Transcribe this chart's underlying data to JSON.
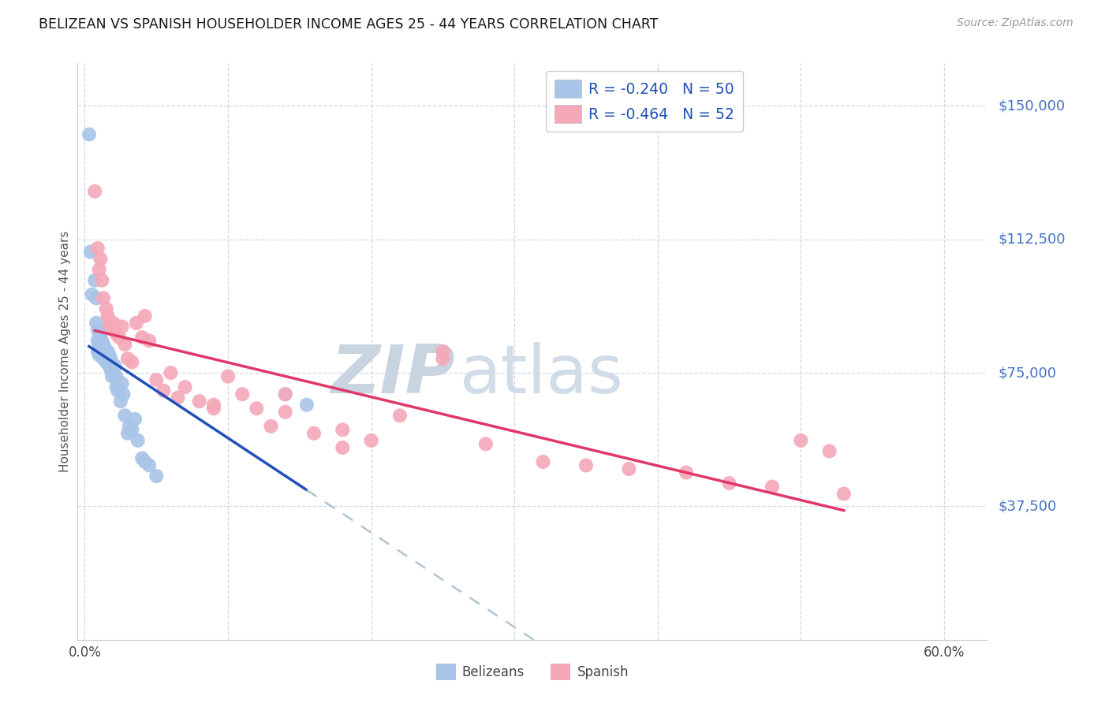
{
  "title": "BELIZEAN VS SPANISH HOUSEHOLDER INCOME AGES 25 - 44 YEARS CORRELATION CHART",
  "source": "Source: ZipAtlas.com",
  "ylabel": "Householder Income Ages 25 - 44 years",
  "belizean_R": -0.24,
  "belizean_N": 50,
  "spanish_R": -0.464,
  "spanish_N": 52,
  "belizean_color": "#a8c4e8",
  "spanish_color": "#f4a8b8",
  "belizean_line_color": "#2050b8",
  "spanish_line_color": "#e03868",
  "dashed_line_color": "#b0c4d4",
  "watermark_color": "#d0dce8",
  "background_color": "#ffffff",
  "grid_color": "#d0d8e4",
  "right_label_color": "#4472c4",
  "legend_text_color": "#2050b8",
  "y_ticks": [
    37500,
    75000,
    112500,
    150000
  ],
  "y_tick_labels": [
    "$37,500",
    "$75,000",
    "$112,500",
    "$150,000"
  ],
  "ylim": [
    0,
    162000
  ],
  "xlim": [
    -0.005,
    0.63
  ],
  "belizean_x": [
    0.003,
    0.004,
    0.005,
    0.007,
    0.008,
    0.008,
    0.009,
    0.009,
    0.009,
    0.01,
    0.01,
    0.01,
    0.011,
    0.011,
    0.012,
    0.012,
    0.013,
    0.013,
    0.013,
    0.014,
    0.014,
    0.015,
    0.015,
    0.016,
    0.016,
    0.017,
    0.017,
    0.018,
    0.018,
    0.019,
    0.02,
    0.021,
    0.022,
    0.022,
    0.023,
    0.025,
    0.026,
    0.027,
    0.028,
    0.03,
    0.031,
    0.033,
    0.035,
    0.037,
    0.04,
    0.042,
    0.045,
    0.05,
    0.14,
    0.155
  ],
  "belizean_y": [
    142000,
    109000,
    97000,
    101000,
    96000,
    89000,
    87000,
    84000,
    81000,
    86000,
    83000,
    80000,
    85000,
    81000,
    84000,
    82000,
    83000,
    81000,
    79000,
    82000,
    80000,
    81000,
    78000,
    81000,
    78000,
    80000,
    77000,
    79000,
    76000,
    74000,
    76000,
    77000,
    74000,
    71000,
    70000,
    67000,
    72000,
    69000,
    63000,
    58000,
    60000,
    59000,
    62000,
    56000,
    51000,
    50000,
    49000,
    46000,
    69000,
    66000
  ],
  "spanish_x": [
    0.007,
    0.009,
    0.01,
    0.011,
    0.012,
    0.013,
    0.015,
    0.016,
    0.017,
    0.018,
    0.02,
    0.022,
    0.024,
    0.026,
    0.028,
    0.03,
    0.033,
    0.036,
    0.04,
    0.042,
    0.045,
    0.05,
    0.055,
    0.06,
    0.065,
    0.07,
    0.08,
    0.09,
    0.1,
    0.11,
    0.12,
    0.13,
    0.14,
    0.16,
    0.18,
    0.2,
    0.22,
    0.25,
    0.28,
    0.32,
    0.35,
    0.38,
    0.42,
    0.45,
    0.48,
    0.5,
    0.52,
    0.53,
    0.18,
    0.25,
    0.09,
    0.14
  ],
  "spanish_y": [
    126000,
    110000,
    104000,
    107000,
    101000,
    96000,
    93000,
    91000,
    89000,
    88000,
    89000,
    86000,
    85000,
    88000,
    83000,
    79000,
    78000,
    89000,
    85000,
    91000,
    84000,
    73000,
    70000,
    75000,
    68000,
    71000,
    67000,
    65000,
    74000,
    69000,
    65000,
    60000,
    64000,
    58000,
    54000,
    56000,
    63000,
    81000,
    55000,
    50000,
    49000,
    48000,
    47000,
    44000,
    43000,
    56000,
    53000,
    41000,
    59000,
    79000,
    66000,
    69000
  ]
}
